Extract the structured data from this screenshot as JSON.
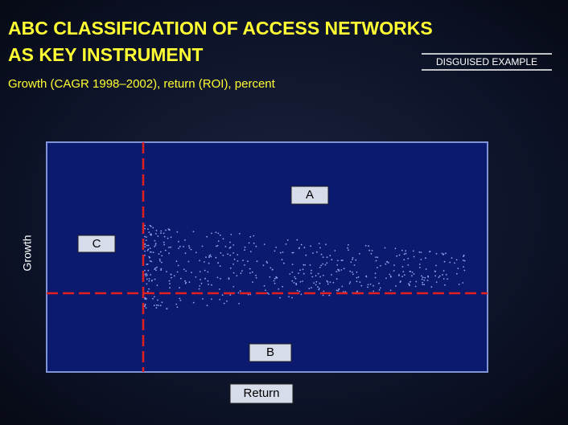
{
  "header": {
    "title_lines": [
      "ABC CLASSIFICATION OF ACCESS NETWORKS",
      "AS KEY INSTRUMENT"
    ],
    "tag": "DISGUISED EXAMPLE",
    "subtitle": "Growth (CAGR 1998–2002), return (ROI), percent"
  },
  "diagram": {
    "y_axis": "Growth",
    "x_axis": "Return",
    "segments": {
      "a": "A",
      "b": "B",
      "c": "C"
    }
  }
}
